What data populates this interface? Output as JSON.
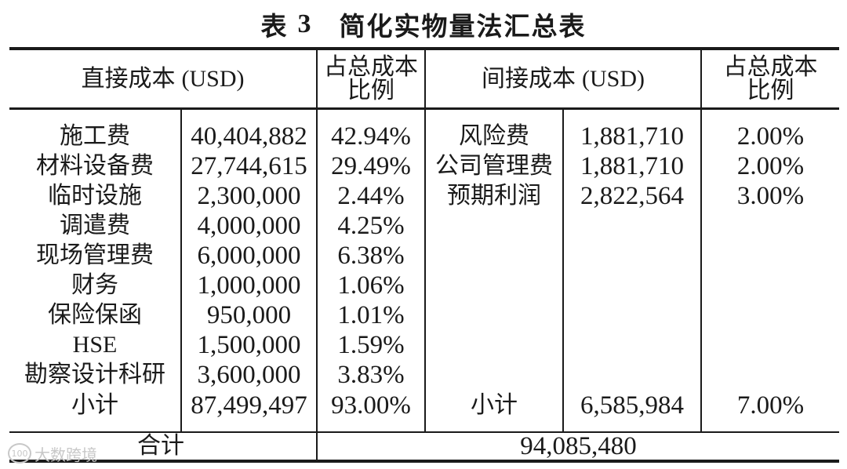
{
  "title": {
    "prefix": "表",
    "number": "3",
    "text": "简化实物量法汇总表"
  },
  "header": {
    "direct_cost": "直接成本",
    "direct_unit": "(USD)",
    "ratio_line1": "占总成本",
    "ratio_line2": "比例",
    "indirect_cost": "间接成本",
    "indirect_unit": "(USD)"
  },
  "direct_rows": [
    {
      "name": "施工费",
      "value": "40,404,882",
      "ratio": "42.94%"
    },
    {
      "name": "材料设备费",
      "value": "27,744,615",
      "ratio": "29.49%"
    },
    {
      "name": "临时设施",
      "value": "2,300,000",
      "ratio": "2.44%"
    },
    {
      "name": "调遣费",
      "value": "4,000,000",
      "ratio": "4.25%"
    },
    {
      "name": "现场管理费",
      "value": "6,000,000",
      "ratio": "6.38%"
    },
    {
      "name": "财务",
      "value": "1,000,000",
      "ratio": "1.06%"
    },
    {
      "name": "保险保函",
      "value": "950,000",
      "ratio": "1.01%"
    },
    {
      "name": "HSE",
      "value": "1,500,000",
      "ratio": "1.59%"
    },
    {
      "name": "勘察设计科研",
      "value": "3,600,000",
      "ratio": "3.83%"
    },
    {
      "name": "小计",
      "value": "87,499,497",
      "ratio": "93.00%"
    }
  ],
  "indirect_rows": [
    {
      "name": "风险费",
      "value": "1,881,710",
      "ratio": "2.00%"
    },
    {
      "name": "公司管理费",
      "value": "1,881,710",
      "ratio": "2.00%"
    },
    {
      "name": "预期利润",
      "value": "2,822,564",
      "ratio": "3.00%"
    }
  ],
  "indirect_subtotal": {
    "name": "小计",
    "value": "6,585,984",
    "ratio": "7.00%"
  },
  "total": {
    "label": "合计",
    "value": "94,085,480"
  },
  "watermark": {
    "logo": "100",
    "text": "大数跨境"
  }
}
